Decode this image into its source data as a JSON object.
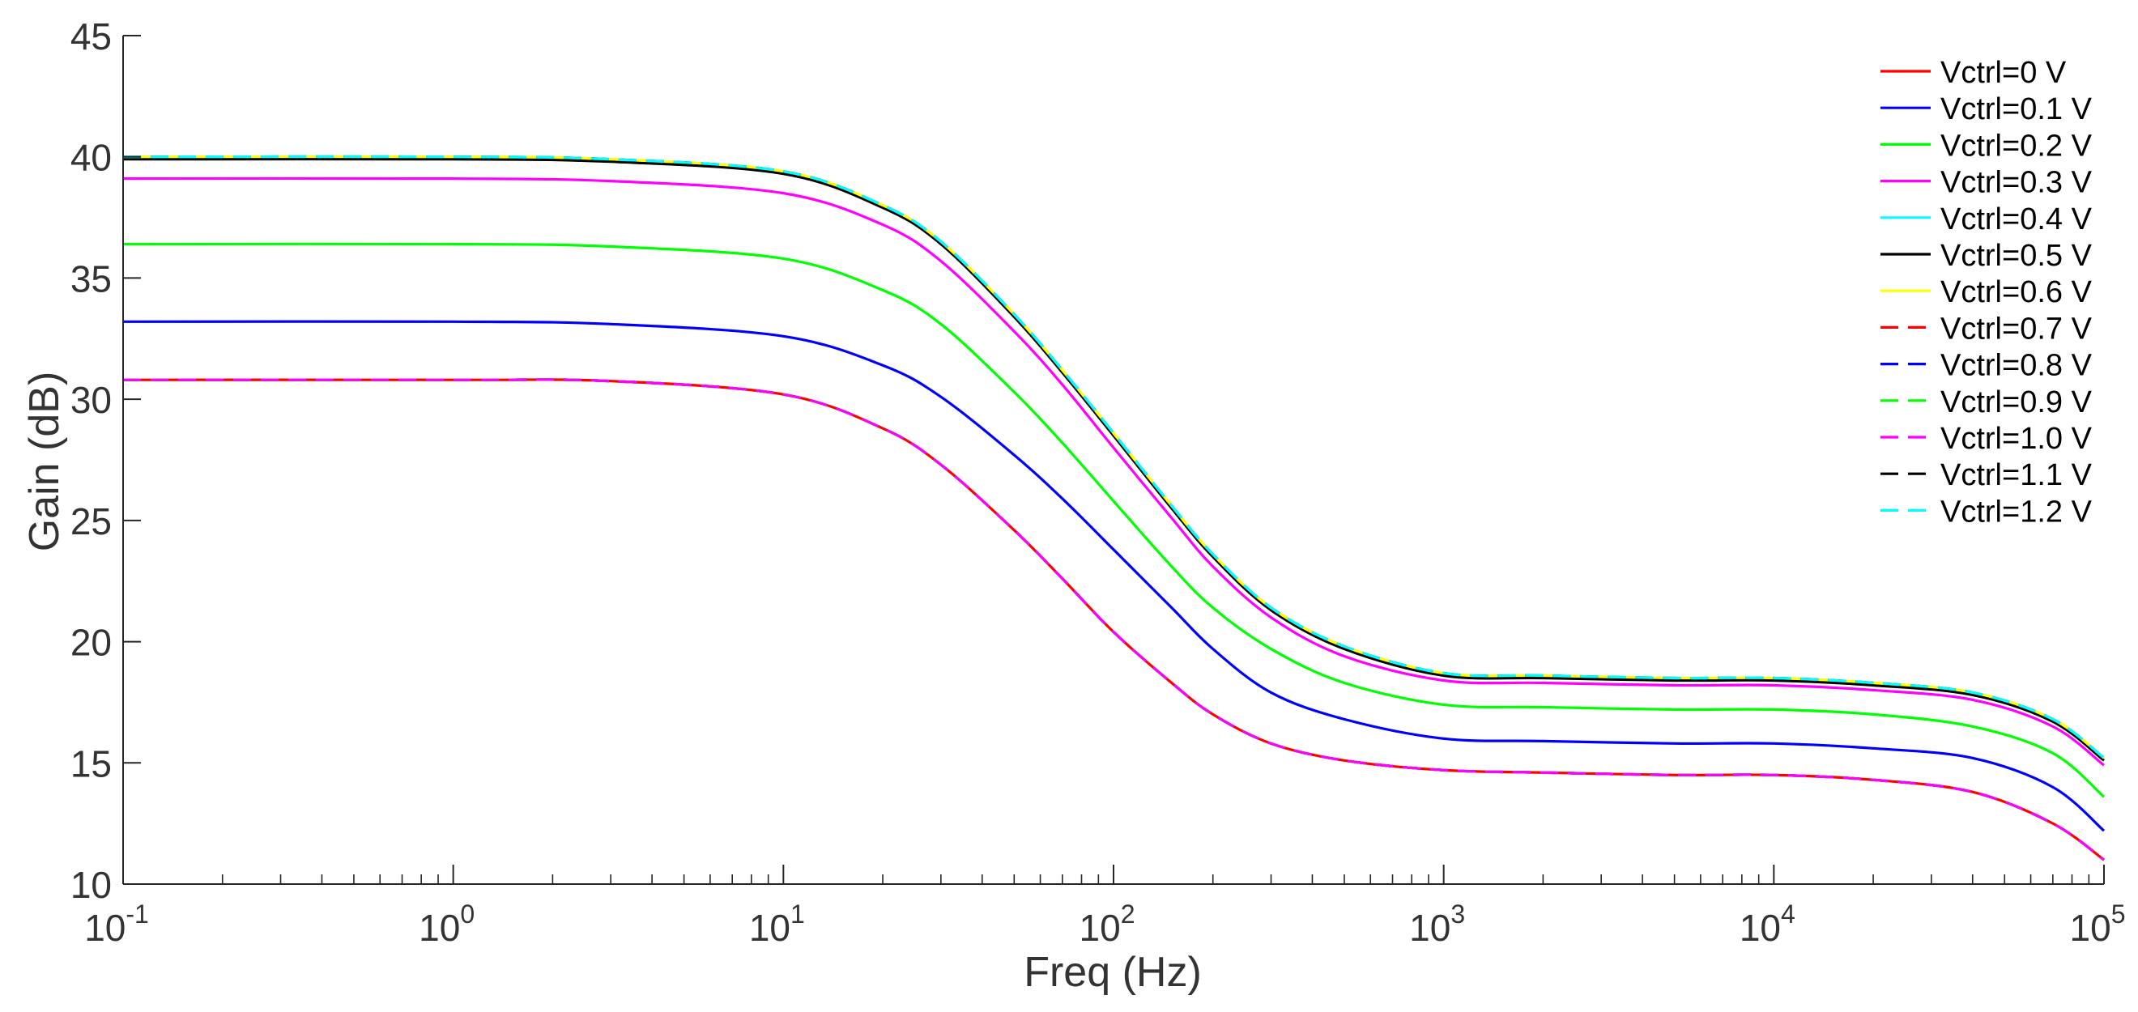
{
  "chart_data": {
    "type": "line",
    "title": "",
    "xlabel": "Freq (Hz)",
    "ylabel": "Gain (dB)",
    "x_scale": "log",
    "xlim": [
      0.1,
      100000
    ],
    "ylim": [
      10,
      45
    ],
    "x_ticks": [
      {
        "base": "10",
        "exp": "-1",
        "value": 0.1
      },
      {
        "base": "10",
        "exp": "0",
        "value": 1
      },
      {
        "base": "10",
        "exp": "1",
        "value": 10
      },
      {
        "base": "10",
        "exp": "2",
        "value": 100
      },
      {
        "base": "10",
        "exp": "3",
        "value": 1000
      },
      {
        "base": "10",
        "exp": "4",
        "value": 10000
      },
      {
        "base": "10",
        "exp": "5",
        "value": 100000
      }
    ],
    "y_ticks": [
      "10",
      "15",
      "20",
      "25",
      "30",
      "35",
      "40",
      "45"
    ],
    "grid": false,
    "legend_position": "top-right",
    "x": [
      0.1,
      1,
      3,
      10,
      20,
      30,
      50,
      70,
      100,
      150,
      200,
      300,
      500,
      1000,
      2000,
      5000,
      10000,
      20000,
      40000,
      70000,
      100000
    ],
    "series": [
      {
        "name": "Vctrl=0 V",
        "color": "#ff0000",
        "dash": "solid",
        "values": [
          30.8,
          30.8,
          30.75,
          30.2,
          28.8,
          27.3,
          24.6,
          22.6,
          20.4,
          18.3,
          17.0,
          15.8,
          15.1,
          14.7,
          14.6,
          14.5,
          14.5,
          14.3,
          13.8,
          12.5,
          11.0
        ]
      },
      {
        "name": "Vctrl=0.1 V",
        "color": "#0000ff",
        "dash": "solid",
        "values": [
          33.2,
          33.2,
          33.1,
          32.6,
          31.4,
          30.1,
          27.7,
          25.9,
          23.8,
          21.4,
          19.7,
          17.9,
          16.8,
          16.0,
          15.9,
          15.8,
          15.8,
          15.6,
          15.2,
          14.0,
          12.2
        ]
      },
      {
        "name": "Vctrl=0.2 V",
        "color": "#00ff00",
        "dash": "solid",
        "values": [
          36.4,
          36.4,
          36.3,
          35.8,
          34.5,
          33.1,
          30.3,
          28.2,
          25.8,
          23.1,
          21.4,
          19.7,
          18.3,
          17.4,
          17.3,
          17.2,
          17.2,
          17.0,
          16.5,
          15.4,
          13.6
        ]
      },
      {
        "name": "Vctrl=0.3 V",
        "color": "#ff00ff",
        "dash": "solid",
        "values": [
          39.1,
          39.1,
          39.0,
          38.5,
          37.2,
          35.7,
          32.8,
          30.6,
          28.0,
          25.1,
          23.1,
          21.0,
          19.4,
          18.4,
          18.3,
          18.2,
          18.2,
          18.0,
          17.6,
          16.5,
          14.9
        ]
      },
      {
        "name": "Vctrl=0.4 V",
        "color": "#00ffff",
        "dash": "solid",
        "values": [
          40.0,
          40.0,
          39.9,
          39.4,
          38.0,
          36.5,
          33.5,
          31.2,
          28.6,
          25.6,
          23.6,
          21.4,
          19.8,
          18.7,
          18.6,
          18.5,
          18.5,
          18.3,
          17.9,
          16.8,
          15.2
        ]
      },
      {
        "name": "Vctrl=0.5 V",
        "color": "#000000",
        "dash": "solid",
        "values": [
          39.9,
          39.9,
          39.8,
          39.3,
          37.9,
          36.4,
          33.4,
          31.1,
          28.5,
          25.5,
          23.5,
          21.3,
          19.7,
          18.6,
          18.5,
          18.4,
          18.4,
          18.2,
          17.8,
          16.7,
          15.1
        ]
      },
      {
        "name": "Vctrl=0.6 V",
        "color": "#ffff00",
        "dash": "solid",
        "values": [
          40.0,
          40.0,
          39.9,
          39.4,
          38.0,
          36.5,
          33.5,
          31.2,
          28.6,
          25.6,
          23.6,
          21.4,
          19.8,
          18.7,
          18.6,
          18.5,
          18.5,
          18.3,
          17.9,
          16.8,
          15.2
        ]
      },
      {
        "name": "Vctrl=0.7 V",
        "color": "#ff0000",
        "dash": "dashed",
        "values": [
          30.8,
          30.8,
          30.75,
          30.2,
          28.8,
          27.3,
          24.6,
          22.6,
          20.4,
          18.3,
          17.0,
          15.8,
          15.1,
          14.7,
          14.6,
          14.5,
          14.5,
          14.3,
          13.8,
          12.5,
          11.0
        ]
      },
      {
        "name": "Vctrl=0.8 V",
        "color": "#0000ff",
        "dash": "dashed",
        "values": [
          30.8,
          30.8,
          30.75,
          30.2,
          28.8,
          27.3,
          24.6,
          22.6,
          20.4,
          18.3,
          17.0,
          15.8,
          15.1,
          14.7,
          14.6,
          14.5,
          14.5,
          14.3,
          13.8,
          12.5,
          11.0
        ]
      },
      {
        "name": "Vctrl=0.9 V",
        "color": "#00ff00",
        "dash": "dashed",
        "values": [
          30.8,
          30.8,
          30.75,
          30.2,
          28.8,
          27.3,
          24.6,
          22.6,
          20.4,
          18.3,
          17.0,
          15.8,
          15.1,
          14.7,
          14.6,
          14.5,
          14.5,
          14.3,
          13.8,
          12.5,
          11.0
        ]
      },
      {
        "name": "Vctrl=1.0 V",
        "color": "#ff00ff",
        "dash": "dashed",
        "values": [
          30.8,
          30.8,
          30.75,
          30.2,
          28.8,
          27.3,
          24.6,
          22.6,
          20.4,
          18.3,
          17.0,
          15.8,
          15.1,
          14.7,
          14.6,
          14.5,
          14.5,
          14.3,
          13.8,
          12.5,
          11.0
        ]
      },
      {
        "name": "Vctrl=1.1 V",
        "color": "#000000",
        "dash": "dashed",
        "values": [
          40.0,
          40.0,
          39.9,
          39.4,
          38.0,
          36.5,
          33.5,
          31.2,
          28.6,
          25.6,
          23.6,
          21.4,
          19.8,
          18.7,
          18.6,
          18.5,
          18.5,
          18.3,
          17.9,
          16.8,
          15.2
        ]
      },
      {
        "name": "Vctrl=1.2 V",
        "color": "#00ffff",
        "dash": "dashed",
        "values": [
          40.0,
          40.0,
          39.9,
          39.4,
          38.0,
          36.5,
          33.5,
          31.2,
          28.6,
          25.6,
          23.6,
          21.4,
          19.8,
          18.7,
          18.6,
          18.5,
          18.5,
          18.3,
          17.9,
          16.8,
          15.2
        ]
      }
    ]
  }
}
